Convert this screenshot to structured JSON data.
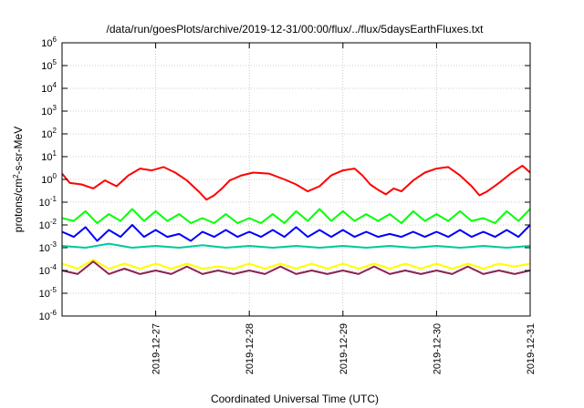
{
  "chart_data": {
    "type": "line",
    "title": "/data/run/goesPlots/archive/2019-12-31/00:00/flux/../flux/5daysEarthFluxes.txt",
    "xlabel": "Coordinated Universal Time (UTC)",
    "ylabel": {
      "base": "protons/cm",
      "sup": "2",
      "rest": "-s-sr-MeV"
    },
    "yscale": "log",
    "ylim": [
      1e-06,
      1000000.0
    ],
    "yticks": [
      {
        "value": 1e-06,
        "base": "10",
        "exp": "-6"
      },
      {
        "value": 1e-05,
        "base": "10",
        "exp": "-5"
      },
      {
        "value": 0.0001,
        "base": "10",
        "exp": "-4"
      },
      {
        "value": 0.001,
        "base": "10",
        "exp": "-3"
      },
      {
        "value": 0.01,
        "base": "10",
        "exp": "-2"
      },
      {
        "value": 0.1,
        "base": "10",
        "exp": "-1"
      },
      {
        "value": 1.0,
        "base": "10",
        "exp": "0"
      },
      {
        "value": 10.0,
        "base": "10",
        "exp": "1"
      },
      {
        "value": 100.0,
        "base": "10",
        "exp": "2"
      },
      {
        "value": 1000.0,
        "base": "10",
        "exp": "3"
      },
      {
        "value": 10000.0,
        "base": "10",
        "exp": "4"
      },
      {
        "value": 100000.0,
        "base": "10",
        "exp": "5"
      },
      {
        "value": 1000000.0,
        "base": "10",
        "exp": "6"
      }
    ],
    "xlim": [
      "2019-12-26T00:00",
      "2019-12-31T00:00"
    ],
    "xticks": [
      {
        "value": "2019-12-27T00:00",
        "label": "2019-12-27"
      },
      {
        "value": "2019-12-28T00:00",
        "label": "2019-12-28"
      },
      {
        "value": "2019-12-29T00:00",
        "label": "2019-12-29"
      },
      {
        "value": "2019-12-30T00:00",
        "label": "2019-12-30"
      },
      {
        "value": "2019-12-31T00:00",
        "label": "2019-12-31"
      }
    ],
    "grid": true,
    "series": [
      {
        "color": "#ff0000",
        "values": [
          [
            "2019-12-26T00:00",
            1.8
          ],
          [
            "2019-12-26T02:00",
            0.7
          ],
          [
            "2019-12-26T05:00",
            0.6
          ],
          [
            "2019-12-26T08:00",
            0.4
          ],
          [
            "2019-12-26T11:00",
            0.9
          ],
          [
            "2019-12-26T14:00",
            0.5
          ],
          [
            "2019-12-26T17:00",
            1.5
          ],
          [
            "2019-12-26T20:00",
            3.0
          ],
          [
            "2019-12-26T23:00",
            2.5
          ],
          [
            "2019-12-27T02:00",
            3.5
          ],
          [
            "2019-12-27T05:00",
            2.0
          ],
          [
            "2019-12-27T08:00",
            0.9
          ],
          [
            "2019-12-27T11:00",
            0.3
          ],
          [
            "2019-12-27T13:00",
            0.13
          ],
          [
            "2019-12-27T15:00",
            0.2
          ],
          [
            "2019-12-27T17:00",
            0.4
          ],
          [
            "2019-12-27T19:00",
            0.9
          ],
          [
            "2019-12-27T22:00",
            1.5
          ],
          [
            "2019-12-28T01:00",
            2.0
          ],
          [
            "2019-12-28T05:00",
            1.8
          ],
          [
            "2019-12-28T09:00",
            1.0
          ],
          [
            "2019-12-28T12:00",
            0.6
          ],
          [
            "2019-12-28T15:00",
            0.3
          ],
          [
            "2019-12-28T18:00",
            0.5
          ],
          [
            "2019-12-28T21:00",
            1.5
          ],
          [
            "2019-12-29T00:00",
            2.5
          ],
          [
            "2019-12-29T03:00",
            3.0
          ],
          [
            "2019-12-29T05:00",
            1.5
          ],
          [
            "2019-12-29T07:00",
            0.6
          ],
          [
            "2019-12-29T09:00",
            0.35
          ],
          [
            "2019-12-29T11:00",
            0.22
          ],
          [
            "2019-12-29T13:00",
            0.4
          ],
          [
            "2019-12-29T15:00",
            0.3
          ],
          [
            "2019-12-29T18:00",
            0.9
          ],
          [
            "2019-12-29T21:00",
            2.0
          ],
          [
            "2019-12-30T00:00",
            3.0
          ],
          [
            "2019-12-30T03:00",
            3.5
          ],
          [
            "2019-12-30T06:00",
            1.5
          ],
          [
            "2019-12-30T09:00",
            0.5
          ],
          [
            "2019-12-30T11:00",
            0.2
          ],
          [
            "2019-12-30T13:00",
            0.3
          ],
          [
            "2019-12-30T16:00",
            0.7
          ],
          [
            "2019-12-30T19:00",
            1.8
          ],
          [
            "2019-12-30T22:00",
            4.0
          ],
          [
            "2019-12-31T00:00",
            2.0
          ]
        ]
      },
      {
        "color": "#00ff00",
        "values": [
          [
            "2019-12-26T00:00",
            0.02
          ],
          [
            "2019-12-26T03:00",
            0.015
          ],
          [
            "2019-12-26T06:00",
            0.04
          ],
          [
            "2019-12-26T09:00",
            0.012
          ],
          [
            "2019-12-26T12:00",
            0.03
          ],
          [
            "2019-12-26T15:00",
            0.015
          ],
          [
            "2019-12-26T18:00",
            0.05
          ],
          [
            "2019-12-26T21:00",
            0.015
          ],
          [
            "2019-12-27T00:00",
            0.04
          ],
          [
            "2019-12-27T03:00",
            0.015
          ],
          [
            "2019-12-27T06:00",
            0.03
          ],
          [
            "2019-12-27T09:00",
            0.012
          ],
          [
            "2019-12-27T12:00",
            0.02
          ],
          [
            "2019-12-27T15:00",
            0.012
          ],
          [
            "2019-12-27T18:00",
            0.03
          ],
          [
            "2019-12-27T21:00",
            0.012
          ],
          [
            "2019-12-28T00:00",
            0.02
          ],
          [
            "2019-12-28T03:00",
            0.012
          ],
          [
            "2019-12-28T06:00",
            0.03
          ],
          [
            "2019-12-28T09:00",
            0.012
          ],
          [
            "2019-12-28T12:00",
            0.04
          ],
          [
            "2019-12-28T15:00",
            0.015
          ],
          [
            "2019-12-28T18:00",
            0.05
          ],
          [
            "2019-12-28T21:00",
            0.015
          ],
          [
            "2019-12-29T00:00",
            0.04
          ],
          [
            "2019-12-29T03:00",
            0.015
          ],
          [
            "2019-12-29T06:00",
            0.03
          ],
          [
            "2019-12-29T09:00",
            0.015
          ],
          [
            "2019-12-29T12:00",
            0.03
          ],
          [
            "2019-12-29T15:00",
            0.012
          ],
          [
            "2019-12-29T18:00",
            0.04
          ],
          [
            "2019-12-29T21:00",
            0.015
          ],
          [
            "2019-12-30T00:00",
            0.03
          ],
          [
            "2019-12-30T03:00",
            0.015
          ],
          [
            "2019-12-30T06:00",
            0.04
          ],
          [
            "2019-12-30T09:00",
            0.015
          ],
          [
            "2019-12-30T12:00",
            0.02
          ],
          [
            "2019-12-30T15:00",
            0.012
          ],
          [
            "2019-12-30T18:00",
            0.04
          ],
          [
            "2019-12-30T21:00",
            0.015
          ],
          [
            "2019-12-31T00:00",
            0.05
          ]
        ]
      },
      {
        "color": "#0000ff",
        "values": [
          [
            "2019-12-26T00:00",
            0.005
          ],
          [
            "2019-12-26T03:00",
            0.003
          ],
          [
            "2019-12-26T06:00",
            0.008
          ],
          [
            "2019-12-26T09:00",
            0.002
          ],
          [
            "2019-12-26T12:00",
            0.006
          ],
          [
            "2019-12-26T15:00",
            0.003
          ],
          [
            "2019-12-26T18:00",
            0.01
          ],
          [
            "2019-12-26T21:00",
            0.003
          ],
          [
            "2019-12-27T00:00",
            0.006
          ],
          [
            "2019-12-27T03:00",
            0.003
          ],
          [
            "2019-12-27T06:00",
            0.004
          ],
          [
            "2019-12-27T09:00",
            0.002
          ],
          [
            "2019-12-27T12:00",
            0.005
          ],
          [
            "2019-12-27T15:00",
            0.003
          ],
          [
            "2019-12-27T18:00",
            0.006
          ],
          [
            "2019-12-27T21:00",
            0.003
          ],
          [
            "2019-12-28T00:00",
            0.005
          ],
          [
            "2019-12-28T03:00",
            0.003
          ],
          [
            "2019-12-28T06:00",
            0.006
          ],
          [
            "2019-12-28T09:00",
            0.003
          ],
          [
            "2019-12-28T12:00",
            0.008
          ],
          [
            "2019-12-28T15:00",
            0.003
          ],
          [
            "2019-12-28T18:00",
            0.006
          ],
          [
            "2019-12-28T21:00",
            0.003
          ],
          [
            "2019-12-29T00:00",
            0.006
          ],
          [
            "2019-12-29T03:00",
            0.003
          ],
          [
            "2019-12-29T06:00",
            0.005
          ],
          [
            "2019-12-29T09:00",
            0.003
          ],
          [
            "2019-12-29T12:00",
            0.004
          ],
          [
            "2019-12-29T15:00",
            0.003
          ],
          [
            "2019-12-29T18:00",
            0.005
          ],
          [
            "2019-12-29T21:00",
            0.003
          ],
          [
            "2019-12-30T00:00",
            0.005
          ],
          [
            "2019-12-30T03:00",
            0.003
          ],
          [
            "2019-12-30T06:00",
            0.006
          ],
          [
            "2019-12-30T09:00",
            0.003
          ],
          [
            "2019-12-30T12:00",
            0.005
          ],
          [
            "2019-12-30T15:00",
            0.003
          ],
          [
            "2019-12-30T18:00",
            0.006
          ],
          [
            "2019-12-30T21:00",
            0.003
          ],
          [
            "2019-12-31T00:00",
            0.01
          ]
        ]
      },
      {
        "color": "#00c8a0",
        "values": [
          [
            "2019-12-26T00:00",
            0.0012
          ],
          [
            "2019-12-26T06:00",
            0.001
          ],
          [
            "2019-12-26T12:00",
            0.0015
          ],
          [
            "2019-12-26T18:00",
            0.001
          ],
          [
            "2019-12-27T00:00",
            0.0012
          ],
          [
            "2019-12-27T06:00",
            0.001
          ],
          [
            "2019-12-27T12:00",
            0.0013
          ],
          [
            "2019-12-27T18:00",
            0.001
          ],
          [
            "2019-12-28T00:00",
            0.0012
          ],
          [
            "2019-12-28T06:00",
            0.001
          ],
          [
            "2019-12-28T12:00",
            0.0012
          ],
          [
            "2019-12-28T18:00",
            0.001
          ],
          [
            "2019-12-29T00:00",
            0.0012
          ],
          [
            "2019-12-29T06:00",
            0.001
          ],
          [
            "2019-12-29T12:00",
            0.0012
          ],
          [
            "2019-12-29T18:00",
            0.001
          ],
          [
            "2019-12-30T00:00",
            0.0012
          ],
          [
            "2019-12-30T06:00",
            0.001
          ],
          [
            "2019-12-30T12:00",
            0.0012
          ],
          [
            "2019-12-30T18:00",
            0.001
          ],
          [
            "2019-12-31T00:00",
            0.0012
          ]
        ]
      },
      {
        "color": "#ffff00",
        "values": [
          [
            "2019-12-26T00:00",
            0.0002
          ],
          [
            "2019-12-26T04:00",
            0.00012
          ],
          [
            "2019-12-26T08:00",
            0.0003
          ],
          [
            "2019-12-26T12:00",
            0.00012
          ],
          [
            "2019-12-26T16:00",
            0.0002
          ],
          [
            "2019-12-26T20:00",
            0.00012
          ],
          [
            "2019-12-27T00:00",
            0.0002
          ],
          [
            "2019-12-27T04:00",
            0.00012
          ],
          [
            "2019-12-27T08:00",
            0.0002
          ],
          [
            "2019-12-27T12:00",
            0.00012
          ],
          [
            "2019-12-27T16:00",
            0.00015
          ],
          [
            "2019-12-27T20:00",
            0.00012
          ],
          [
            "2019-12-28T00:00",
            0.0002
          ],
          [
            "2019-12-28T04:00",
            0.00012
          ],
          [
            "2019-12-28T08:00",
            0.0002
          ],
          [
            "2019-12-28T12:00",
            0.00012
          ],
          [
            "2019-12-28T16:00",
            0.0002
          ],
          [
            "2019-12-28T20:00",
            0.00012
          ],
          [
            "2019-12-29T00:00",
            0.0002
          ],
          [
            "2019-12-29T04:00",
            0.00012
          ],
          [
            "2019-12-29T08:00",
            0.0002
          ],
          [
            "2019-12-29T12:00",
            0.00012
          ],
          [
            "2019-12-29T16:00",
            0.0002
          ],
          [
            "2019-12-29T20:00",
            0.00012
          ],
          [
            "2019-12-30T00:00",
            0.0002
          ],
          [
            "2019-12-30T04:00",
            0.00012
          ],
          [
            "2019-12-30T08:00",
            0.0002
          ],
          [
            "2019-12-30T12:00",
            0.00012
          ],
          [
            "2019-12-30T16:00",
            0.0002
          ],
          [
            "2019-12-30T20:00",
            0.00015
          ],
          [
            "2019-12-31T00:00",
            0.0002
          ]
        ]
      },
      {
        "color": "#8b2252",
        "values": [
          [
            "2019-12-26T00:00",
            0.0001
          ],
          [
            "2019-12-26T04:00",
            7e-05
          ],
          [
            "2019-12-26T08:00",
            0.00025
          ],
          [
            "2019-12-26T12:00",
            7e-05
          ],
          [
            "2019-12-26T16:00",
            0.00012
          ],
          [
            "2019-12-26T20:00",
            7e-05
          ],
          [
            "2019-12-27T00:00",
            0.0001
          ],
          [
            "2019-12-27T04:00",
            7e-05
          ],
          [
            "2019-12-27T08:00",
            0.00015
          ],
          [
            "2019-12-27T12:00",
            7e-05
          ],
          [
            "2019-12-27T16:00",
            0.0001
          ],
          [
            "2019-12-27T20:00",
            7e-05
          ],
          [
            "2019-12-28T00:00",
            0.0001
          ],
          [
            "2019-12-28T04:00",
            7e-05
          ],
          [
            "2019-12-28T08:00",
            0.00015
          ],
          [
            "2019-12-28T12:00",
            7e-05
          ],
          [
            "2019-12-28T16:00",
            0.0001
          ],
          [
            "2019-12-28T20:00",
            7e-05
          ],
          [
            "2019-12-29T00:00",
            0.0001
          ],
          [
            "2019-12-29T04:00",
            7e-05
          ],
          [
            "2019-12-29T08:00",
            0.00015
          ],
          [
            "2019-12-29T12:00",
            7e-05
          ],
          [
            "2019-12-29T16:00",
            0.0001
          ],
          [
            "2019-12-29T20:00",
            7e-05
          ],
          [
            "2019-12-30T00:00",
            0.0001
          ],
          [
            "2019-12-30T04:00",
            7e-05
          ],
          [
            "2019-12-30T08:00",
            0.00015
          ],
          [
            "2019-12-30T12:00",
            7e-05
          ],
          [
            "2019-12-30T16:00",
            0.0001
          ],
          [
            "2019-12-30T20:00",
            7e-05
          ],
          [
            "2019-12-31T00:00",
            0.0001
          ]
        ]
      }
    ]
  }
}
